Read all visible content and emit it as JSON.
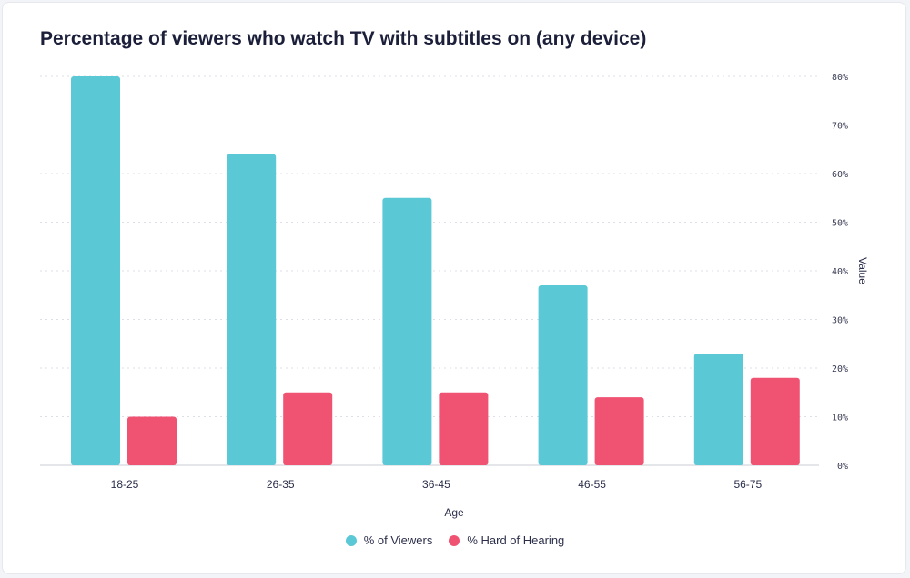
{
  "chart_data": {
    "type": "bar",
    "title": "Percentage of viewers who watch TV with subtitles on (any device)",
    "xlabel": "Age",
    "ylabel": "Value",
    "categories": [
      "18-25",
      "26-35",
      "36-45",
      "46-55",
      "56-75"
    ],
    "series": [
      {
        "name": "% of Viewers",
        "values": [
          80,
          64,
          55,
          37,
          23
        ],
        "color": "#5bc8d6"
      },
      {
        "name": "% Hard of Hearing",
        "values": [
          10,
          15,
          15,
          14,
          18
        ],
        "color": "#f05272"
      }
    ],
    "ylim": [
      0,
      80
    ],
    "yticks": [
      "0%",
      "10%",
      "20%",
      "30%",
      "40%",
      "50%",
      "60%",
      "70%",
      "80%"
    ],
    "yaxis_position": "right",
    "grid": true,
    "legend_position": "bottom-center"
  }
}
